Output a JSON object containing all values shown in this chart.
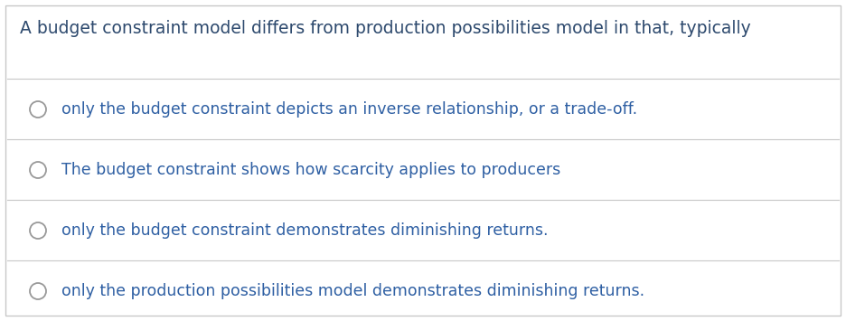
{
  "background_color": "#ffffff",
  "border_color": "#c8c8c8",
  "divider_color": "#c8c8c8",
  "question_text": "A budget constraint model differs from production possibilities model in that, typically",
  "question_color": "#2e4a6e",
  "options": [
    "only the budget constraint depicts an inverse relationship, or a trade-off.",
    "The budget constraint shows how scarcity applies to producers",
    "only the budget constraint demonstrates diminishing returns.",
    "only the production possibilities model demonstrates diminishing returns."
  ],
  "option_color": "#2e5fa3",
  "circle_edge_color": "#999999",
  "circle_face_color": "#ffffff",
  "font_size_question": 13.5,
  "font_size_options": 12.5,
  "figsize": [
    9.36,
    3.55
  ],
  "dpi": 100
}
